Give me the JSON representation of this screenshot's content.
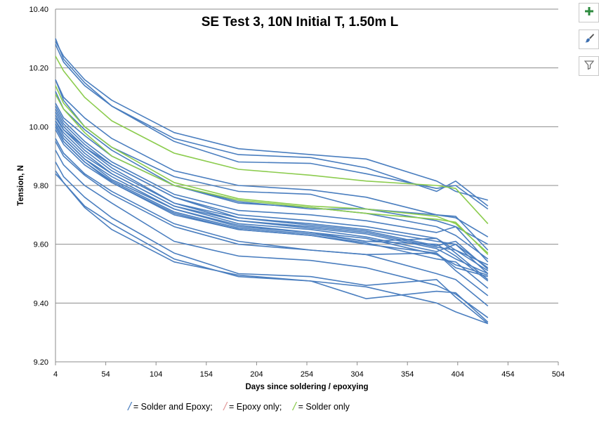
{
  "chart_data": {
    "type": "line",
    "title": "SE Test 3, 10N Initial T, 1.50m L",
    "xlabel": "Days since soldering / epoxying",
    "ylabel": "Tension, N",
    "xlim": [
      4,
      504
    ],
    "ylim": [
      9.2,
      10.4
    ],
    "xticks": [
      "4",
      "54",
      "104",
      "154",
      "204",
      "254",
      "304",
      "354",
      "404",
      "454",
      "504"
    ],
    "yticks": [
      "9.20",
      "9.40",
      "9.60",
      "9.80",
      "10.00",
      "10.20",
      "10.40"
    ],
    "grid": "horizontal",
    "colors": {
      "solder_and_epoxy": "#4a7ebf",
      "epoxy_only": "#c0504d",
      "solder_only": "#8ccc4e"
    },
    "x": [
      4,
      12,
      33,
      60,
      122,
      186,
      258,
      313,
      383,
      402,
      434
    ],
    "series": [
      {
        "group": "solder_and_epoxy",
        "values": [
          10.29,
          10.24,
          10.16,
          10.09,
          9.98,
          9.925,
          9.905,
          9.89,
          9.815,
          9.78,
          9.75
        ]
      },
      {
        "group": "solder_and_epoxy",
        "values": [
          10.3,
          10.23,
          10.15,
          10.07,
          9.96,
          9.905,
          9.895,
          9.86,
          9.78,
          9.815,
          9.73
        ]
      },
      {
        "group": "solder_and_epoxy",
        "values": [
          10.28,
          10.22,
          10.14,
          10.07,
          9.95,
          9.88,
          9.875,
          9.84,
          9.79,
          9.8,
          9.72
        ]
      },
      {
        "group": "solder_and_epoxy",
        "values": [
          10.16,
          10.1,
          10.03,
          9.96,
          9.85,
          9.8,
          9.785,
          9.76,
          9.7,
          9.69,
          9.625
        ]
      },
      {
        "group": "solder_and_epoxy",
        "values": [
          10.16,
          10.09,
          10.0,
          9.93,
          9.83,
          9.78,
          9.77,
          9.72,
          9.68,
          9.66,
          9.6
        ]
      },
      {
        "group": "solder_and_epoxy",
        "values": [
          10.12,
          10.06,
          9.99,
          9.92,
          9.8,
          9.745,
          9.72,
          9.72,
          9.7,
          9.695,
          9.58
        ]
      },
      {
        "group": "solder_and_epoxy",
        "values": [
          10.08,
          10.03,
          9.97,
          9.9,
          9.8,
          9.74,
          9.725,
          9.705,
          9.66,
          9.63,
          9.55
        ]
      },
      {
        "group": "solder_and_epoxy",
        "values": [
          10.07,
          10.02,
          9.95,
          9.88,
          9.77,
          9.715,
          9.7,
          9.68,
          9.64,
          9.66,
          9.54
        ]
      },
      {
        "group": "solder_and_epoxy",
        "values": [
          10.06,
          10.01,
          9.94,
          9.87,
          9.76,
          9.7,
          9.68,
          9.66,
          9.62,
          9.58,
          9.53
        ]
      },
      {
        "group": "solder_and_epoxy",
        "values": [
          10.05,
          10.0,
          9.93,
          9.87,
          9.76,
          9.69,
          9.67,
          9.65,
          9.61,
          9.6,
          9.52
        ]
      },
      {
        "group": "solder_and_epoxy",
        "values": [
          10.04,
          9.99,
          9.93,
          9.86,
          9.74,
          9.69,
          9.665,
          9.645,
          9.595,
          9.61,
          9.515
        ]
      },
      {
        "group": "solder_and_epoxy",
        "values": [
          10.03,
          9.99,
          9.92,
          9.85,
          9.74,
          9.68,
          9.66,
          9.64,
          9.59,
          9.58,
          9.51
        ]
      },
      {
        "group": "solder_and_epoxy",
        "values": [
          10.02,
          9.98,
          9.91,
          9.84,
          9.73,
          9.68,
          9.655,
          9.635,
          9.585,
          9.55,
          9.5
        ]
      },
      {
        "group": "solder_and_epoxy",
        "values": [
          10.02,
          9.97,
          9.9,
          9.84,
          9.73,
          9.67,
          9.65,
          9.625,
          9.575,
          9.6,
          9.5
        ]
      },
      {
        "group": "solder_and_epoxy",
        "values": [
          10.01,
          9.96,
          9.89,
          9.83,
          9.72,
          9.665,
          9.64,
          9.62,
          9.565,
          9.53,
          9.495
        ]
      },
      {
        "group": "solder_and_epoxy",
        "values": [
          10.01,
          9.96,
          9.89,
          9.82,
          9.72,
          9.66,
          9.64,
          9.61,
          9.62,
          9.57,
          9.48
        ]
      },
      {
        "group": "solder_and_epoxy",
        "values": [
          10.0,
          9.95,
          9.88,
          9.815,
          9.71,
          9.655,
          9.635,
          9.61,
          9.6,
          9.56,
          9.475
        ]
      },
      {
        "group": "solder_and_epoxy",
        "values": [
          10.0,
          9.95,
          9.88,
          9.81,
          9.705,
          9.65,
          9.63,
          9.605,
          9.55,
          9.54,
          9.45
        ]
      },
      {
        "group": "solder_and_epoxy",
        "values": [
          9.99,
          9.94,
          9.87,
          9.81,
          9.7,
          9.65,
          9.63,
          9.6,
          9.57,
          9.52,
          9.49
        ]
      },
      {
        "group": "solder_and_epoxy",
        "values": [
          9.96,
          9.91,
          9.84,
          9.78,
          9.67,
          9.61,
          9.58,
          9.565,
          9.57,
          9.51,
          9.425
        ]
      },
      {
        "group": "solder_and_epoxy",
        "values": [
          9.95,
          9.9,
          9.835,
          9.77,
          9.66,
          9.6,
          9.58,
          9.565,
          9.5,
          9.48,
          9.39
        ]
      },
      {
        "group": "solder_and_epoxy",
        "values": [
          9.92,
          9.87,
          9.8,
          9.74,
          9.61,
          9.56,
          9.545,
          9.52,
          9.46,
          9.43,
          9.35
        ]
      },
      {
        "group": "solder_and_epoxy",
        "values": [
          9.88,
          9.83,
          9.76,
          9.69,
          9.57,
          9.5,
          9.49,
          9.46,
          9.48,
          9.42,
          9.33
        ]
      },
      {
        "group": "solder_and_epoxy",
        "values": [
          9.85,
          9.81,
          9.73,
          9.67,
          9.55,
          9.49,
          9.475,
          9.415,
          9.44,
          9.435,
          9.335
        ]
      },
      {
        "group": "solder_and_epoxy",
        "values": [
          9.84,
          9.81,
          9.725,
          9.65,
          9.54,
          9.495,
          9.475,
          9.455,
          9.4,
          9.37,
          9.33
        ]
      },
      {
        "group": "solder_only",
        "values": [
          10.24,
          10.19,
          10.1,
          10.02,
          9.91,
          9.855,
          9.835,
          9.815,
          9.8,
          9.79,
          9.67
        ]
      },
      {
        "group": "solder_only",
        "values": [
          10.14,
          10.08,
          10.0,
          9.93,
          9.81,
          9.755,
          9.73,
          9.72,
          9.695,
          9.67,
          9.57
        ]
      },
      {
        "group": "solder_only",
        "values": [
          10.11,
          10.06,
          9.98,
          9.9,
          9.8,
          9.75,
          9.725,
          9.705,
          9.685,
          9.675,
          9.565
        ]
      }
    ]
  },
  "legend": {
    "glyph": "/",
    "items": [
      {
        "label": "= Solder and Epoxy;",
        "color": "#4a7ebf"
      },
      {
        "label": "= Epoxy only;",
        "color": "#e39b9b"
      },
      {
        "label": "= Solder only",
        "color": "#8ccc4e"
      }
    ]
  },
  "side_buttons": [
    {
      "icon": "plus-icon",
      "color": "#2e8b3f"
    },
    {
      "icon": "brush-icon",
      "color": "#3d6fb0"
    },
    {
      "icon": "filter-icon",
      "color": "#707070"
    }
  ]
}
